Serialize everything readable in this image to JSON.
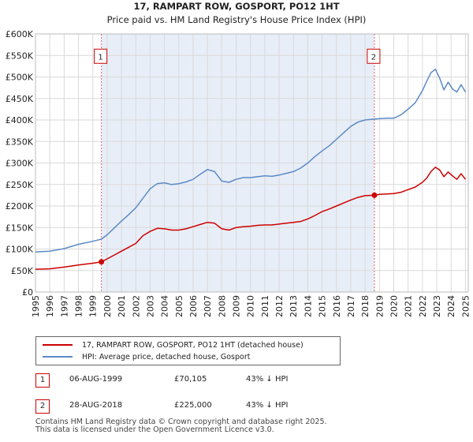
{
  "chart_data": {
    "type": "line",
    "title": "17, RAMPART ROW, GOSPORT, PO12 1HT",
    "subtitle": "Price paid vs. HM Land Registry's House Price Index (HPI)",
    "x_range": [
      1995,
      2025.2
    ],
    "ylim": [
      0,
      600000
    ],
    "y_ticks": [
      0,
      50000,
      100000,
      150000,
      200000,
      250000,
      300000,
      350000,
      400000,
      450000,
      500000,
      550000,
      600000
    ],
    "y_tick_labels": [
      "£0",
      "£50K",
      "£100K",
      "£150K",
      "£200K",
      "£250K",
      "£300K",
      "£350K",
      "£400K",
      "£450K",
      "£500K",
      "£550K",
      "£600K"
    ],
    "x_ticks": [
      1995,
      1996,
      1997,
      1998,
      1999,
      2000,
      2001,
      2002,
      2003,
      2004,
      2005,
      2006,
      2007,
      2008,
      2009,
      2010,
      2011,
      2012,
      2013,
      2014,
      2015,
      2016,
      2017,
      2018,
      2019,
      2020,
      2021,
      2022,
      2023,
      2024,
      2025
    ],
    "x_tick_labels": [
      "1995",
      "1996",
      "1997",
      "1998",
      "1999",
      "2000",
      "2001",
      "2002",
      "2003",
      "2004",
      "2005",
      "2006",
      "2007",
      "2008",
      "2009",
      "2010",
      "2011",
      "2012",
      "2013",
      "2014",
      "2015",
      "2016",
      "2017",
      "2018",
      "2019",
      "2020",
      "2021",
      "2022",
      "2023",
      "2024",
      "2025"
    ],
    "series": [
      {
        "name": "17, RAMPART ROW, GOSPORT, PO12 1HT (detached house)",
        "color": "#cc0000",
        "x": [
          1995,
          1996,
          1997,
          1998,
          1999,
          1999.6,
          2000,
          2000.5,
          2001,
          2001.5,
          2002,
          2002.5,
          2003,
          2003.5,
          2004,
          2004.5,
          2005,
          2005.5,
          2006,
          2006.5,
          2007,
          2007.5,
          2008,
          2008.5,
          2009,
          2009.5,
          2010,
          2010.5,
          2011,
          2011.5,
          2012,
          2012.5,
          2013,
          2013.5,
          2014,
          2014.5,
          2015,
          2015.5,
          2016,
          2016.5,
          2017,
          2017.5,
          2018,
          2018.65,
          2019,
          2019.5,
          2020,
          2020.5,
          2021,
          2021.5,
          2022,
          2022.3,
          2022.6,
          2022.9,
          2023.2,
          2023.5,
          2023.8,
          2024.1,
          2024.4,
          2024.7,
          2025
        ],
        "y": [
          53000,
          54000,
          58000,
          63000,
          67000,
          70105,
          77000,
          86000,
          95000,
          104000,
          113000,
          131000,
          141000,
          148000,
          147000,
          144000,
          144000,
          147000,
          152000,
          157000,
          162000,
          160000,
          147000,
          144000,
          150000,
          152000,
          153000,
          155000,
          156000,
          156000,
          158000,
          160000,
          162000,
          164000,
          170000,
          178000,
          187000,
          193000,
          200000,
          207000,
          214000,
          220000,
          224000,
          225000,
          227000,
          228000,
          229000,
          232000,
          238000,
          244000,
          255000,
          265000,
          280000,
          290000,
          284000,
          268000,
          279000,
          270000,
          262000,
          275000,
          262000
        ]
      },
      {
        "name": "HPI: Average price, detached house, Gosport",
        "color": "#5a8ac6",
        "x": [
          1995,
          1996,
          1997,
          1998,
          1999,
          1999.6,
          2000,
          2000.5,
          2001,
          2001.5,
          2002,
          2002.5,
          2003,
          2003.5,
          2004,
          2004.5,
          2005,
          2005.5,
          2006,
          2006.5,
          2007,
          2007.5,
          2008,
          2008.5,
          2009,
          2009.5,
          2010,
          2010.5,
          2011,
          2011.5,
          2012,
          2012.5,
          2013,
          2013.5,
          2014,
          2014.5,
          2015,
          2015.5,
          2016,
          2016.5,
          2017,
          2017.5,
          2018,
          2018.65,
          2019,
          2019.5,
          2020,
          2020.5,
          2021,
          2021.5,
          2022,
          2022.3,
          2022.6,
          2022.9,
          2023.2,
          2023.5,
          2023.8,
          2024.1,
          2024.4,
          2024.7,
          2025
        ],
        "y": [
          93000,
          95000,
          101000,
          111000,
          118000,
          123000,
          133000,
          149000,
          165000,
          180000,
          196000,
          218000,
          240000,
          252000,
          254000,
          250000,
          252000,
          256000,
          262000,
          274000,
          285000,
          280000,
          258000,
          255000,
          262000,
          266000,
          266000,
          268000,
          270000,
          269000,
          272000,
          276000,
          280000,
          288000,
          300000,
          315000,
          328000,
          340000,
          355000,
          370000,
          385000,
          395000,
          400000,
          402000,
          403000,
          404000,
          404000,
          412000,
          425000,
          440000,
          468000,
          490000,
          510000,
          518000,
          498000,
          470000,
          488000,
          472000,
          465000,
          482000,
          465000
        ]
      }
    ],
    "markers": [
      {
        "label": "1",
        "x": 1999.6,
        "y": 70105
      },
      {
        "label": "2",
        "x": 2018.65,
        "y": 225000
      }
    ],
    "marker_box_value": 550000,
    "legend_position": "bottom"
  },
  "legend": {
    "property_label": "17, RAMPART ROW, GOSPORT, PO12 1HT (detached house)",
    "hpi_label": "HPI: Average price, detached house, Gosport"
  },
  "sales": [
    {
      "num": "1",
      "date": "06-AUG-1999",
      "price": "£70,105",
      "hpi": "43% ↓ HPI"
    },
    {
      "num": "2",
      "date": "28-AUG-2018",
      "price": "£225,000",
      "hpi": "43% ↓ HPI"
    }
  ],
  "footer": {
    "line1": "Contains HM Land Registry data © Crown copyright and database right 2025.",
    "line2": "This data is licensed under the Open Government Licence v3.0."
  },
  "colors": {
    "property": "#cc0000",
    "hpi": "#5a8ac6",
    "shade": "#e8eef8",
    "grid": "#d9d9d9"
  }
}
